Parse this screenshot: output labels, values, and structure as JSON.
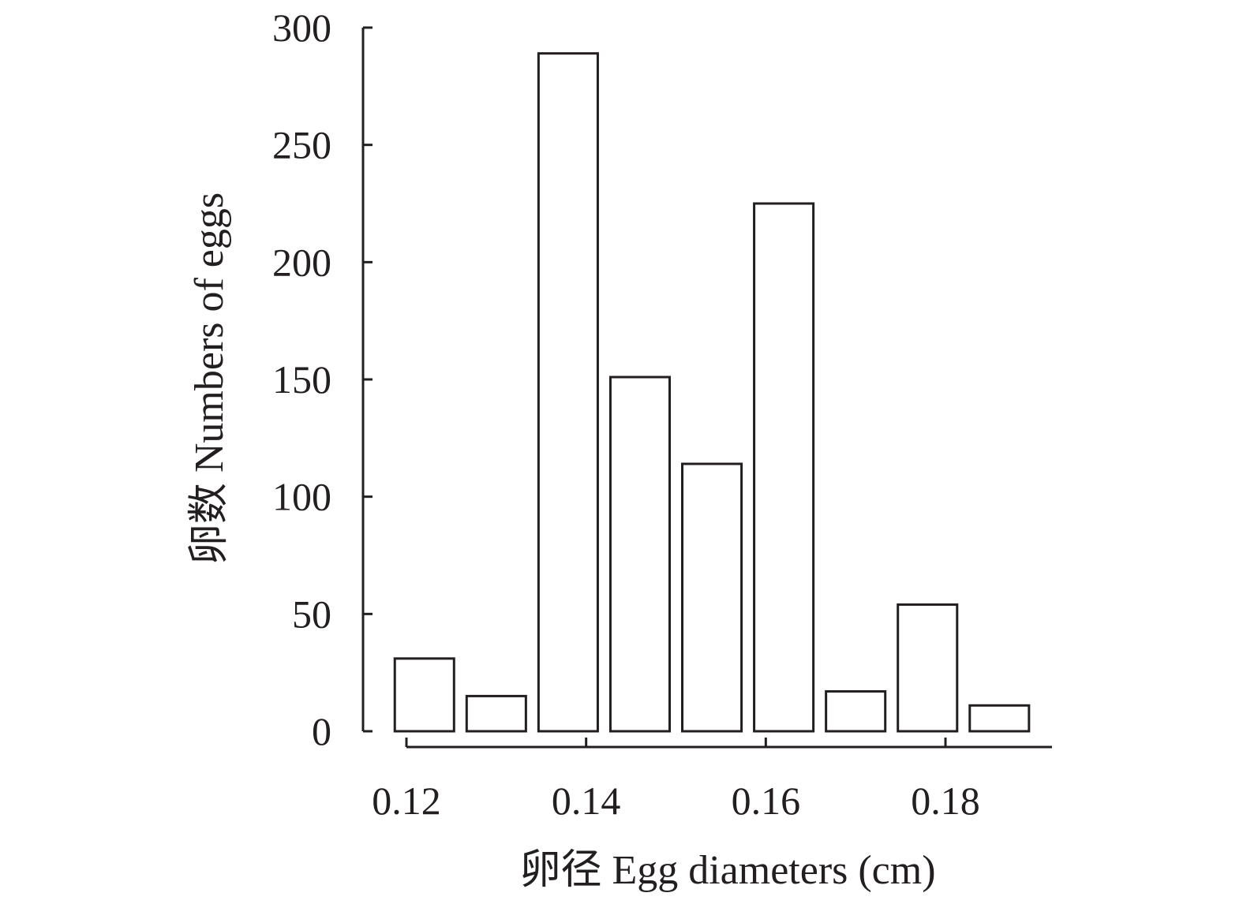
{
  "chart_data": {
    "type": "bar",
    "title": "",
    "xlabel": "卵径 Egg diameters (cm)",
    "ylabel": "卵数 Numbers of eggs",
    "ylim": [
      0,
      300
    ],
    "yticks": [
      "0",
      "50",
      "100",
      "150",
      "200",
      "250",
      "300"
    ],
    "xticks": [
      {
        "label": "0.12",
        "value": 0.12
      },
      {
        "label": "0.14",
        "value": 0.14
      },
      {
        "label": "0.16",
        "value": 0.16
      },
      {
        "label": "0.18",
        "value": 0.18
      }
    ],
    "bins": [
      {
        "start": 0.118,
        "end": 0.126,
        "value": 31
      },
      {
        "start": 0.126,
        "end": 0.134,
        "value": 15
      },
      {
        "start": 0.134,
        "end": 0.142,
        "value": 289
      },
      {
        "start": 0.142,
        "end": 0.15,
        "value": 151
      },
      {
        "start": 0.15,
        "end": 0.158,
        "value": 114
      },
      {
        "start": 0.158,
        "end": 0.166,
        "value": 225
      },
      {
        "start": 0.166,
        "end": 0.174,
        "value": 17
      },
      {
        "start": 0.174,
        "end": 0.182,
        "value": 54
      },
      {
        "start": 0.182,
        "end": 0.19,
        "value": 11
      }
    ],
    "grid": false,
    "legend": "none",
    "colors": {
      "bar_fill": "#ffffff",
      "stroke": "#231f20"
    }
  }
}
